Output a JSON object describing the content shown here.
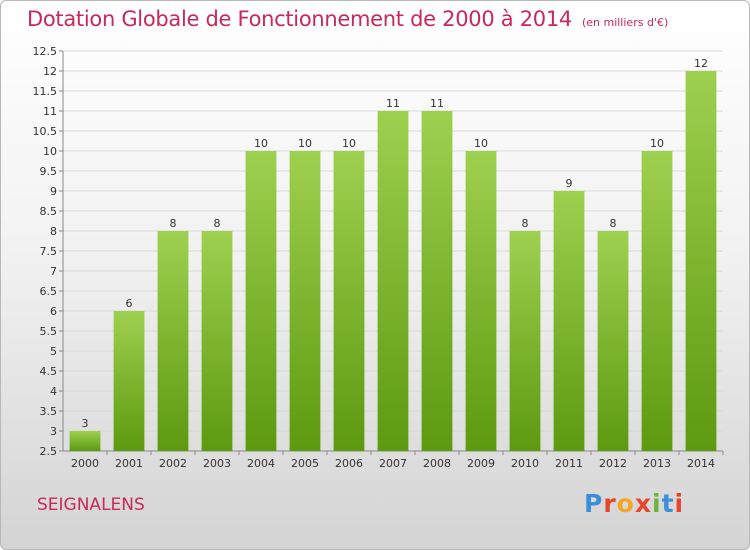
{
  "title": "Dotation Globale de Fonctionnement de 2000 à 2014",
  "unit": "(en milliers d'€)",
  "place": "SEIGNALENS",
  "logo": {
    "text": "Proxiti",
    "letter_colors": [
      "#3b8fd8",
      "#e8462c",
      "#f5a623",
      "#e8462c",
      "#6bb43c",
      "#3b8fd8",
      "#e8462c"
    ]
  },
  "colors": {
    "bar_top": "#9ed04f",
    "bar_bottom": "#5c9a10",
    "title": "#c8285a"
  },
  "chart_data": {
    "type": "bar",
    "categories": [
      "2000",
      "2001",
      "2002",
      "2003",
      "2004",
      "2005",
      "2006",
      "2007",
      "2008",
      "2009",
      "2010",
      "2011",
      "2012",
      "2013",
      "2014"
    ],
    "values": [
      3,
      6,
      8,
      8,
      10,
      10,
      10,
      11,
      11,
      10,
      8,
      9,
      8,
      10,
      12
    ],
    "value_labels": [
      "3",
      "6",
      "8",
      "8",
      "10",
      "10",
      "10",
      "11",
      "11",
      "10",
      "8",
      "9",
      "8",
      "10",
      "12"
    ],
    "ylim": [
      2.5,
      12.5
    ],
    "yticks": [
      2.5,
      3,
      3.5,
      4,
      4.5,
      5,
      5.5,
      6,
      6.5,
      7,
      7.5,
      8,
      8.5,
      9,
      9.5,
      10,
      10.5,
      11,
      11.5,
      12,
      12.5
    ],
    "ytick_labels": [
      "2.5",
      "3",
      "3.5",
      "4",
      "4.5",
      "5",
      "5.5",
      "6",
      "6.5",
      "7",
      "7.5",
      "8",
      "8.5",
      "9",
      "9.5",
      "10",
      "10.5",
      "11",
      "11.5",
      "12",
      "12.5"
    ],
    "grid": true,
    "legend": "none"
  }
}
